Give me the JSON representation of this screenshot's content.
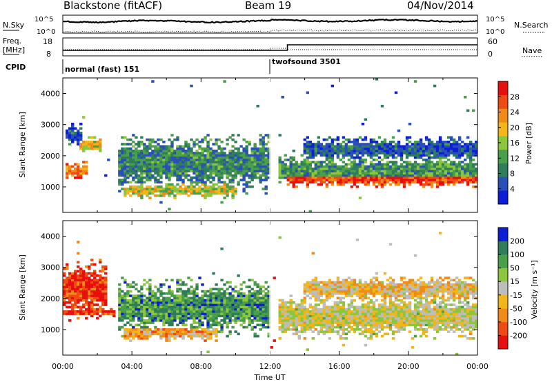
{
  "header": {
    "station": "Blackstone (fitACF)",
    "beam": "Beam 19",
    "date": "04/Nov/2014"
  },
  "summary": {
    "nsky_label": "N.Sky",
    "nsearch_label": "N.Search",
    "noise_ticks": [
      "10^5",
      "10^0"
    ],
    "freq_label_line1": "Freq.",
    "freq_label_line2": "[MHz]",
    "freq_ticks": [
      "18",
      "8"
    ],
    "nave_label": "Nave",
    "nave_ticks": [
      "60",
      "0"
    ],
    "cpid_label": "CPID",
    "cpid_segments": [
      {
        "label": "normal (fast) 151",
        "start_hour": 0
      },
      {
        "label": "twofsound 3501",
        "start_hour": 12
      }
    ]
  },
  "chart_data": [
    {
      "type": "heatmap",
      "name": "power",
      "ylabel": "Slant Range [km]",
      "ylim": [
        180,
        4500
      ],
      "yticks": [
        1000,
        2000,
        3000,
        4000
      ],
      "ytick_labels": [
        "1000",
        "2000",
        "3000",
        "4000"
      ],
      "xlim": [
        0,
        24
      ],
      "colorbar": {
        "label": "Power [dB]",
        "ticks": [
          4,
          8,
          12,
          16,
          20,
          24,
          28
        ],
        "tick_labels": [
          "4",
          "8",
          "12",
          "16",
          "20",
          "24",
          "28"
        ],
        "range": [
          0,
          32
        ],
        "colors": [
          "#0d1fd6",
          "#2a4fb8",
          "#2f7d5a",
          "#4aa04a",
          "#8cc63f",
          "#f2b51a",
          "#f08a18",
          "#f04a14",
          "#e80f0f"
        ]
      },
      "bands": [
        {
          "start_hour": 0.0,
          "end_hour": 0.3,
          "center_km": 1050,
          "width_km": 40,
          "level": 0.7
        },
        {
          "start_hour": 0.1,
          "end_hour": 1.5,
          "center_km": 1500,
          "width_km": 280,
          "level": 0.75
        },
        {
          "start_hour": 1.0,
          "end_hour": 2.2,
          "center_km": 2350,
          "width_km": 250,
          "level": 0.6
        },
        {
          "start_hour": 0.2,
          "end_hour": 1.2,
          "center_km": 2650,
          "width_km": 350,
          "level": 0.2
        },
        {
          "start_hour": 3.2,
          "end_hour": 12.0,
          "center_km": 1750,
          "width_km": 900,
          "level": 0.3
        },
        {
          "start_hour": 6.5,
          "end_hour": 11.8,
          "center_km": 1750,
          "width_km": 220,
          "level": 0.7
        },
        {
          "start_hour": 3.5,
          "end_hour": 10.0,
          "center_km": 900,
          "width_km": 250,
          "level": 0.55
        },
        {
          "start_hour": 13.0,
          "end_hour": 24.0,
          "center_km": 1250,
          "width_km": 250,
          "level": 0.85
        },
        {
          "start_hour": 12.5,
          "end_hour": 24.0,
          "center_km": 1500,
          "width_km": 500,
          "level": 0.35
        },
        {
          "start_hour": 14.0,
          "end_hour": 24.0,
          "center_km": 2200,
          "width_km": 400,
          "level": 0.2
        }
      ]
    },
    {
      "type": "heatmap",
      "name": "velocity",
      "ylabel": "Slant Range [km]",
      "ylim": [
        180,
        4500
      ],
      "yticks": [
        1000,
        2000,
        3000,
        4000
      ],
      "ytick_labels": [
        "1000",
        "2000",
        "3000",
        "4000"
      ],
      "xlim": [
        0,
        24
      ],
      "xticks": [
        0,
        4,
        8,
        12,
        16,
        20,
        24
      ],
      "xtick_labels": [
        "00:00",
        "04:00",
        "08:00",
        "12:00",
        "16:00",
        "20:00",
        "00:00"
      ],
      "xlabel": "Time UT",
      "colorbar": {
        "label": "Velocity [m s⁻¹]",
        "tick_labels": [
          "200",
          "100",
          "50",
          "15",
          "-15",
          "-50",
          "-100",
          "-200"
        ],
        "range": [
          -250,
          250
        ],
        "colors": [
          "#e80f0f",
          "#f04a14",
          "#f08a18",
          "#f2b51a",
          "#bdbdbd",
          "#8cc63f",
          "#4aa04a",
          "#2f7d5a",
          "#0d1fd6"
        ]
      },
      "bands": [
        {
          "start_hour": 0.0,
          "end_hour": 2.5,
          "center_km": 2300,
          "width_km": 900,
          "level": 0.1
        },
        {
          "start_hour": 0.0,
          "end_hour": 3.0,
          "center_km": 1550,
          "width_km": 120,
          "level": 0.1
        },
        {
          "start_hour": 3.2,
          "end_hour": 12.0,
          "center_km": 1700,
          "width_km": 900,
          "level": 0.75
        },
        {
          "start_hour": 6.5,
          "end_hour": 11.8,
          "center_km": 1800,
          "width_km": 300,
          "level": 0.85
        },
        {
          "start_hour": 3.5,
          "end_hour": 9.0,
          "center_km": 900,
          "width_km": 250,
          "level": 0.35
        },
        {
          "start_hour": 12.5,
          "end_hour": 24.0,
          "center_km": 1400,
          "width_km": 700,
          "level": 0.5
        },
        {
          "start_hour": 14.0,
          "end_hour": 24.0,
          "center_km": 2300,
          "width_km": 400,
          "level": 0.4
        }
      ]
    }
  ]
}
